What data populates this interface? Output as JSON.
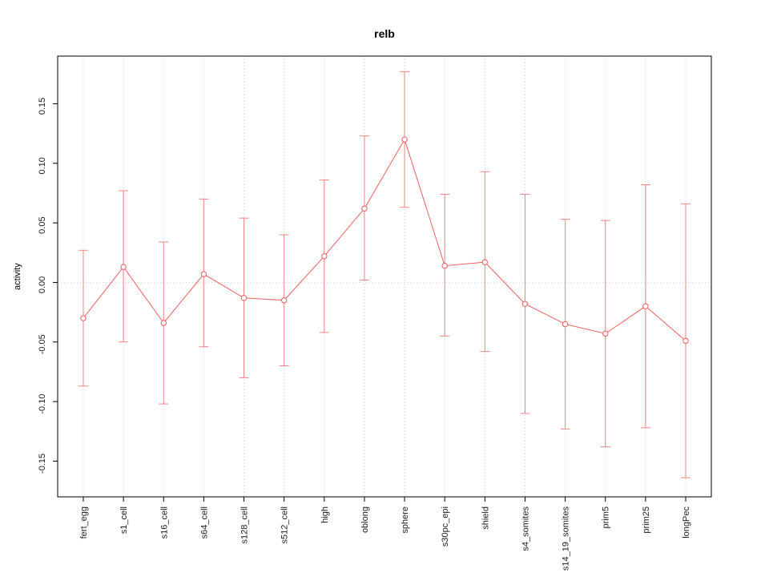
{
  "chart_data": {
    "type": "line",
    "title": "relb",
    "xlabel": "",
    "ylabel": "activity",
    "categories": [
      "fert_egg",
      "s1_cell",
      "s16_cell",
      "s64_cell",
      "s128_cell",
      "s512_cell",
      "high",
      "oblong",
      "sphere",
      "s30pc_epi",
      "shield",
      "s4_somites",
      "s14_19_somites",
      "prim5",
      "prim25",
      "longPec"
    ],
    "series": [
      {
        "name": "activity",
        "values": [
          -0.03,
          0.013,
          -0.034,
          0.007,
          -0.013,
          -0.015,
          0.022,
          0.062,
          0.12,
          0.014,
          0.017,
          -0.018,
          -0.035,
          -0.043,
          -0.02,
          -0.049
        ],
        "lower": [
          -0.087,
          -0.05,
          -0.102,
          -0.054,
          -0.08,
          -0.07,
          -0.042,
          0.002,
          0.063,
          -0.045,
          -0.058,
          -0.11,
          -0.123,
          -0.138,
          -0.122,
          -0.164
        ],
        "upper": [
          0.027,
          0.077,
          0.034,
          0.07,
          0.054,
          0.04,
          0.086,
          0.123,
          0.177,
          0.074,
          0.093,
          0.074,
          0.053,
          0.052,
          0.082,
          0.066
        ]
      }
    ],
    "ylim": [
      -0.18,
      0.19
    ],
    "yticks": [
      -0.15,
      -0.1,
      -0.05,
      0.0,
      0.05,
      0.1,
      0.15
    ],
    "legend": "none",
    "grid": "dotted vertical gridlines at each category; dotted horizontal line at y=0",
    "reference_line_y": 0,
    "line_color": "#ef5c5c",
    "errorbar_color": "#f28282",
    "grid_color": "#cccccc",
    "axis_color": "#000000",
    "marker": "open-circle"
  }
}
